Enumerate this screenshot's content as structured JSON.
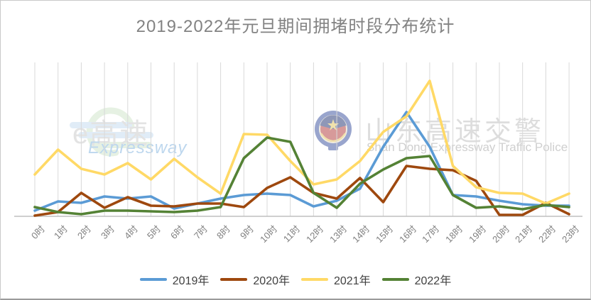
{
  "title": "2019-2022年元旦期间拥堵时段分布统计",
  "watermarks": {
    "expressway_logo": {
      "text_cn": "e高速",
      "text_en": "Expressway",
      "icon": "e-expressway-logo"
    },
    "traffic_police": {
      "text_cn": "山东高速交警",
      "text_en": "Shan Dong Expressway Traffic Police",
      "icon": "police-badge"
    }
  },
  "colors": {
    "title": "#828282",
    "tick_label": "#7f7f7f",
    "legend_text": "#404040",
    "grid": "#d9d9d9",
    "axis": "#bfbfbf"
  },
  "chart_data": {
    "type": "line",
    "title": "2019-2022年元旦期间拥堵时段分布统计",
    "xlabel": "",
    "ylabel": "",
    "y_axis_labels_visible": false,
    "grid": "vertical-only",
    "legend_position": "bottom-center",
    "ylim": [
      0,
      200
    ],
    "x_categories": [
      "0时",
      "1时",
      "2时",
      "3时",
      "4时",
      "5时",
      "6时",
      "7时",
      "8时",
      "9时",
      "10时",
      "11时",
      "12时",
      "13时",
      "14时",
      "15时",
      "16时",
      "17时",
      "18时",
      "19时",
      "20时",
      "21时",
      "22时",
      "23时"
    ],
    "series": [
      {
        "name": "2019年",
        "color": "#5B9BD5",
        "values": [
          8,
          21,
          19,
          28,
          25,
          28,
          11,
          18,
          25,
          30,
          32,
          30,
          14,
          22,
          39,
          98,
          147,
          98,
          30,
          28,
          22,
          17,
          15,
          15
        ]
      },
      {
        "name": "2020年",
        "color": "#9E480E",
        "values": [
          1,
          6,
          33,
          12,
          27,
          15,
          14,
          18,
          18,
          13,
          40,
          55,
          33,
          25,
          54,
          20,
          71,
          67,
          65,
          50,
          2,
          2,
          19,
          3
        ]
      },
      {
        "name": "2021年",
        "color": "#FFD966",
        "values": [
          59,
          94,
          67,
          59,
          75,
          52,
          81,
          55,
          32,
          116,
          115,
          78,
          45,
          52,
          78,
          119,
          141,
          191,
          71,
          41,
          33,
          32,
          18,
          32
        ]
      },
      {
        "name": "2022年",
        "color": "#548235",
        "values": [
          13,
          6,
          3,
          8,
          8,
          7,
          6,
          8,
          13,
          82,
          111,
          105,
          33,
          12,
          46,
          66,
          82,
          85,
          30,
          12,
          14,
          10,
          16,
          13
        ]
      }
    ],
    "note": "y-axis has no visible tick labels; values estimated in pixel-height units above baseline"
  }
}
